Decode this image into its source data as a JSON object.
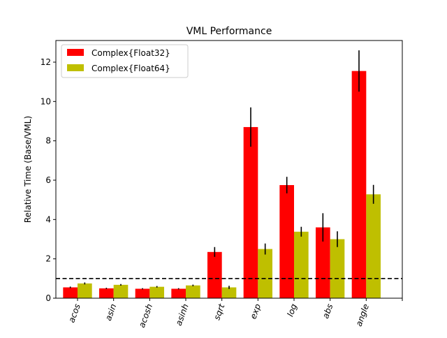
{
  "chart_data": {
    "type": "bar",
    "title": "VML Performance",
    "xlabel": "",
    "ylabel": "Relative Time (Base/VML)",
    "categories": [
      "acos",
      "asin",
      "acosh",
      "asinh",
      "sqrt",
      "exp",
      "log",
      "abs",
      "angle"
    ],
    "series": [
      {
        "name": "Complex{Float32}",
        "color": "#ff0000",
        "values": [
          0.55,
          0.5,
          0.48,
          0.48,
          2.35,
          8.7,
          5.75,
          3.6,
          11.55
        ],
        "errors": [
          0.04,
          0.03,
          0.03,
          0.03,
          0.25,
          1.0,
          0.42,
          0.72,
          1.05
        ]
      },
      {
        "name": "Complex{Float64}",
        "color": "#bfbf00",
        "values": [
          0.75,
          0.68,
          0.58,
          0.65,
          0.55,
          2.5,
          3.38,
          3.0,
          5.28
        ],
        "errors": [
          0.05,
          0.04,
          0.04,
          0.04,
          0.08,
          0.28,
          0.25,
          0.4,
          0.48
        ]
      }
    ],
    "reference_line": {
      "y": 1.0,
      "style": "dashed",
      "color": "#000000"
    },
    "ylim": [
      0,
      13.1
    ],
    "yticks": [
      0,
      2,
      4,
      6,
      8,
      10,
      12
    ],
    "xlim": [
      -0.6,
      9
    ],
    "grid": false,
    "legend_position": "top-left",
    "xtick_rotation_deg": 70
  }
}
